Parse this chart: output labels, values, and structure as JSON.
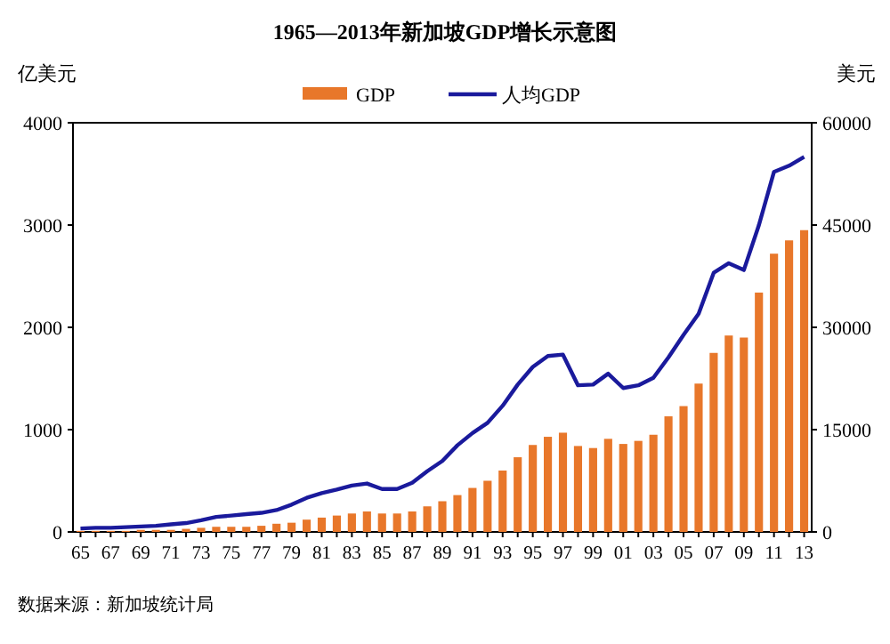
{
  "chart_data": {
    "type": "bar",
    "title": "1965—2013年新加坡GDP增长示意图",
    "ylabel": "亿美元",
    "y2label": "美元",
    "categories": [
      "65",
      null,
      "67",
      null,
      "69",
      null,
      "71",
      null,
      "73",
      null,
      "75",
      null,
      "77",
      null,
      "79",
      null,
      "81",
      null,
      "83",
      null,
      "85",
      null,
      "87",
      null,
      "89",
      null,
      "91",
      null,
      "93",
      null,
      "95",
      null,
      "97",
      null,
      "99",
      null,
      "01",
      null,
      "03",
      null,
      "05",
      null,
      "07",
      null,
      "09",
      null,
      "11",
      null,
      "13"
    ],
    "series": [
      {
        "name": "GDP",
        "color": "#e8772a",
        "values": [
          10,
          10,
          10,
          10,
          20,
          20,
          20,
          30,
          40,
          50,
          50,
          50,
          60,
          80,
          90,
          120,
          140,
          160,
          180,
          200,
          180,
          180,
          200,
          250,
          300,
          360,
          430,
          500,
          600,
          730,
          850,
          930,
          970,
          840,
          820,
          910,
          860,
          890,
          950,
          1130,
          1230,
          1450,
          1750,
          1920,
          1900,
          2340,
          2720,
          2850,
          2950
        ]
      },
      {
        "name": "人均GDP",
        "type": "line",
        "axis": "y2",
        "color": "#1a1a9c",
        "values": [
          500,
          600,
          600,
          700,
          800,
          900,
          1100,
          1300,
          1700,
          2200,
          2400,
          2600,
          2800,
          3200,
          4000,
          5000,
          5700,
          6200,
          6800,
          7100,
          6300,
          6300,
          7200,
          8900,
          10400,
          12700,
          14500,
          16000,
          18500,
          21600,
          24200,
          25800,
          26000,
          21500,
          21600,
          23200,
          21100,
          21500,
          22600,
          25600,
          28900,
          32000,
          38000,
          39400,
          38400,
          45000,
          52800,
          53700,
          55000
        ]
      }
    ],
    "ylim": [
      0,
      4000
    ],
    "yticks": [
      0,
      1000,
      2000,
      3000,
      4000
    ],
    "y2lim": [
      0,
      60000
    ],
    "y2ticks": [
      0,
      15000,
      30000,
      45000,
      60000
    ],
    "legend": "top",
    "grid": false,
    "annotations": [
      "数据来源：新加坡统计局"
    ]
  }
}
